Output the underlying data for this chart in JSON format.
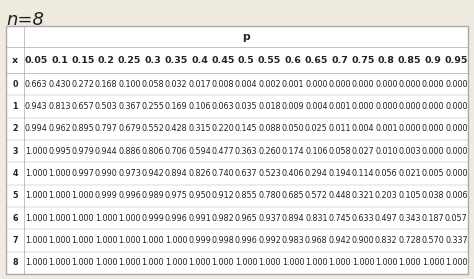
{
  "title": "n=8",
  "p_header": "p",
  "col_headers": [
    "x",
    "0.05",
    "0.1",
    "0.15",
    "0.2",
    "0.25",
    "0.3",
    "0.35",
    "0.4",
    "0.45",
    "0.5",
    "0.55",
    "0.6",
    "0.65",
    "0.7",
    "0.75",
    "0.8",
    "0.85",
    "0.9",
    "0.95"
  ],
  "rows": [
    [
      0,
      0.663,
      0.43,
      0.272,
      0.168,
      0.1,
      0.058,
      0.032,
      0.017,
      0.008,
      0.004,
      0.002,
      0.001,
      0.0,
      0.0,
      0.0,
      0.0,
      0.0,
      0.0,
      0.0
    ],
    [
      1,
      0.943,
      0.813,
      0.657,
      0.503,
      0.367,
      0.255,
      0.169,
      0.106,
      0.063,
      0.035,
      0.018,
      0.009,
      0.004,
      0.001,
      0.0,
      0.0,
      0.0,
      0.0,
      0.0
    ],
    [
      2,
      0.994,
      0.962,
      0.895,
      0.797,
      0.679,
      0.552,
      0.428,
      0.315,
      0.22,
      0.145,
      0.088,
      0.05,
      0.025,
      0.011,
      0.004,
      0.001,
      0.0,
      0.0,
      0.0
    ],
    [
      3,
      1.0,
      0.995,
      0.979,
      0.944,
      0.886,
      0.806,
      0.706,
      0.594,
      0.477,
      0.363,
      0.26,
      0.174,
      0.106,
      0.058,
      0.027,
      0.01,
      0.003,
      0.0,
      0.0
    ],
    [
      4,
      1.0,
      1.0,
      0.997,
      0.99,
      0.973,
      0.942,
      0.894,
      0.826,
      0.74,
      0.637,
      0.523,
      0.406,
      0.294,
      0.194,
      0.114,
      0.056,
      0.021,
      0.005,
      0.0
    ],
    [
      5,
      1.0,
      1.0,
      1.0,
      0.999,
      0.996,
      0.989,
      0.975,
      0.95,
      0.912,
      0.855,
      0.78,
      0.685,
      0.572,
      0.448,
      0.321,
      0.203,
      0.105,
      0.038,
      0.006
    ],
    [
      6,
      1.0,
      1.0,
      1.0,
      1.0,
      1.0,
      0.999,
      0.996,
      0.991,
      0.982,
      0.965,
      0.937,
      0.894,
      0.831,
      0.745,
      0.633,
      0.497,
      0.343,
      0.187,
      0.057
    ],
    [
      7,
      1.0,
      1.0,
      1.0,
      1.0,
      1.0,
      1.0,
      1.0,
      0.999,
      0.998,
      0.996,
      0.992,
      0.983,
      0.968,
      0.942,
      0.9,
      0.832,
      0.728,
      0.57,
      0.337
    ],
    [
      8,
      1.0,
      1.0,
      1.0,
      1.0,
      1.0,
      1.0,
      1.0,
      1.0,
      1.0,
      1.0,
      1.0,
      1.0,
      1.0,
      1.0,
      1.0,
      1.0,
      1.0,
      1.0,
      1.0
    ]
  ],
  "bg_color": "#f0ebe0",
  "table_bg": "#ffffff",
  "border_color": "#aaaaaa",
  "text_color": "#222222",
  "title_fontsize": 13,
  "header_fontsize": 6.8,
  "cell_fontsize": 5.8
}
